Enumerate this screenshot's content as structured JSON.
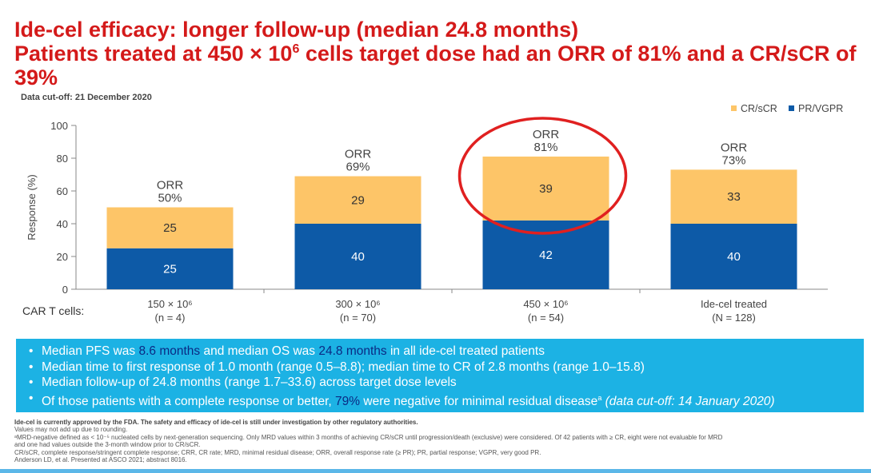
{
  "title": {
    "line1": "Ide-cel efficacy: longer follow-up (median 24.8 months)",
    "line2_pre": "Patients treated at 450 × 10",
    "line2_sup": "6",
    "line2_post": " cells target dose had an ORR of 81% and a CR/sCR of 39%"
  },
  "data_cutoff": "Data cut-off: 21 December 2020",
  "chart_data": {
    "type": "bar",
    "stacked": true,
    "ylabel": "Response (%)",
    "ylim": [
      0,
      100
    ],
    "yticks": [
      "0",
      "20",
      "40",
      "60",
      "80",
      "100"
    ],
    "x_title": "CAR T cells:",
    "categories": [
      {
        "label": "150 × 10⁶",
        "n": "(n = 4)"
      },
      {
        "label": "300 × 10⁶",
        "n": "(n = 70)"
      },
      {
        "label": "450 × 10⁶",
        "n": "(n = 54)"
      },
      {
        "label": "Ide-cel treated",
        "n": "(N = 128)"
      }
    ],
    "series": [
      {
        "name": "PR/VGPR",
        "color": "#0d5aa7",
        "values": [
          25,
          40,
          42,
          40
        ],
        "labels": [
          "25",
          "40",
          "42",
          "40"
        ]
      },
      {
        "name": "CR/sCR",
        "color": "#fdc568",
        "values": [
          25,
          29,
          39,
          33
        ],
        "labels": [
          "25",
          "29",
          "39",
          "33"
        ]
      }
    ],
    "orr": [
      {
        "label": "ORR",
        "value": "50%"
      },
      {
        "label": "ORR",
        "value": "69%"
      },
      {
        "label": "ORR",
        "value": "81%"
      },
      {
        "label": "ORR",
        "value": "73%"
      }
    ],
    "legend": {
      "position": "top-right",
      "items": [
        "CR/sCR",
        "PR/VGPR"
      ]
    },
    "highlight_color": "#e02020",
    "highlighted_category": 2
  },
  "bullets": {
    "b1_a": "Median PFS was ",
    "b1_b": "8.6 months",
    "b1_c": " and median OS was ",
    "b1_d": "24.8 months",
    "b1_e": " in all ide-cel treated patients",
    "b2": "Median time to first response of 1.0 month (range 0.5–8.8); median time to CR of 2.8 months (range 1.0–15.8)",
    "b3": "Median follow-up of 24.8 months (range 1.7–33.6) across target dose levels",
    "b4_a": "Of those patients with a complete response or better, ",
    "b4_b": "79%",
    "b4_c": " were negative for minimal residual disease",
    "b4_sup": "a",
    "b4_d": " (data cut-off: 14 January 2020)"
  },
  "footer": {
    "l1": "Ide-cel is currently approved by the FDA. The safety and efficacy of ide-cel is still under investigation by other regulatory authorities.",
    "l2": "Values may not add up due to rounding.",
    "l3": "ᵃMRD-negative defined as < 10⁻⁵ nucleated cells by next-generation sequencing. Only MRD values within 3 months of achieving CR/sCR until progression/death (exclusive) were considered. Of 42 patients with ≥ CR, eight were not evaluable for MRD",
    "l4": "and one had values outside the 3-month window prior to CR/sCR.",
    "l5": "CR/sCR, complete response/stringent complete response; CRR, CR rate; MRD, minimal residual disease; ORR, overall response rate (≥ PR); PR, partial response; VGPR, very good PR.",
    "l6": "Anderson LD, et al. Presented at ASCO 2021; abstract 8016."
  }
}
